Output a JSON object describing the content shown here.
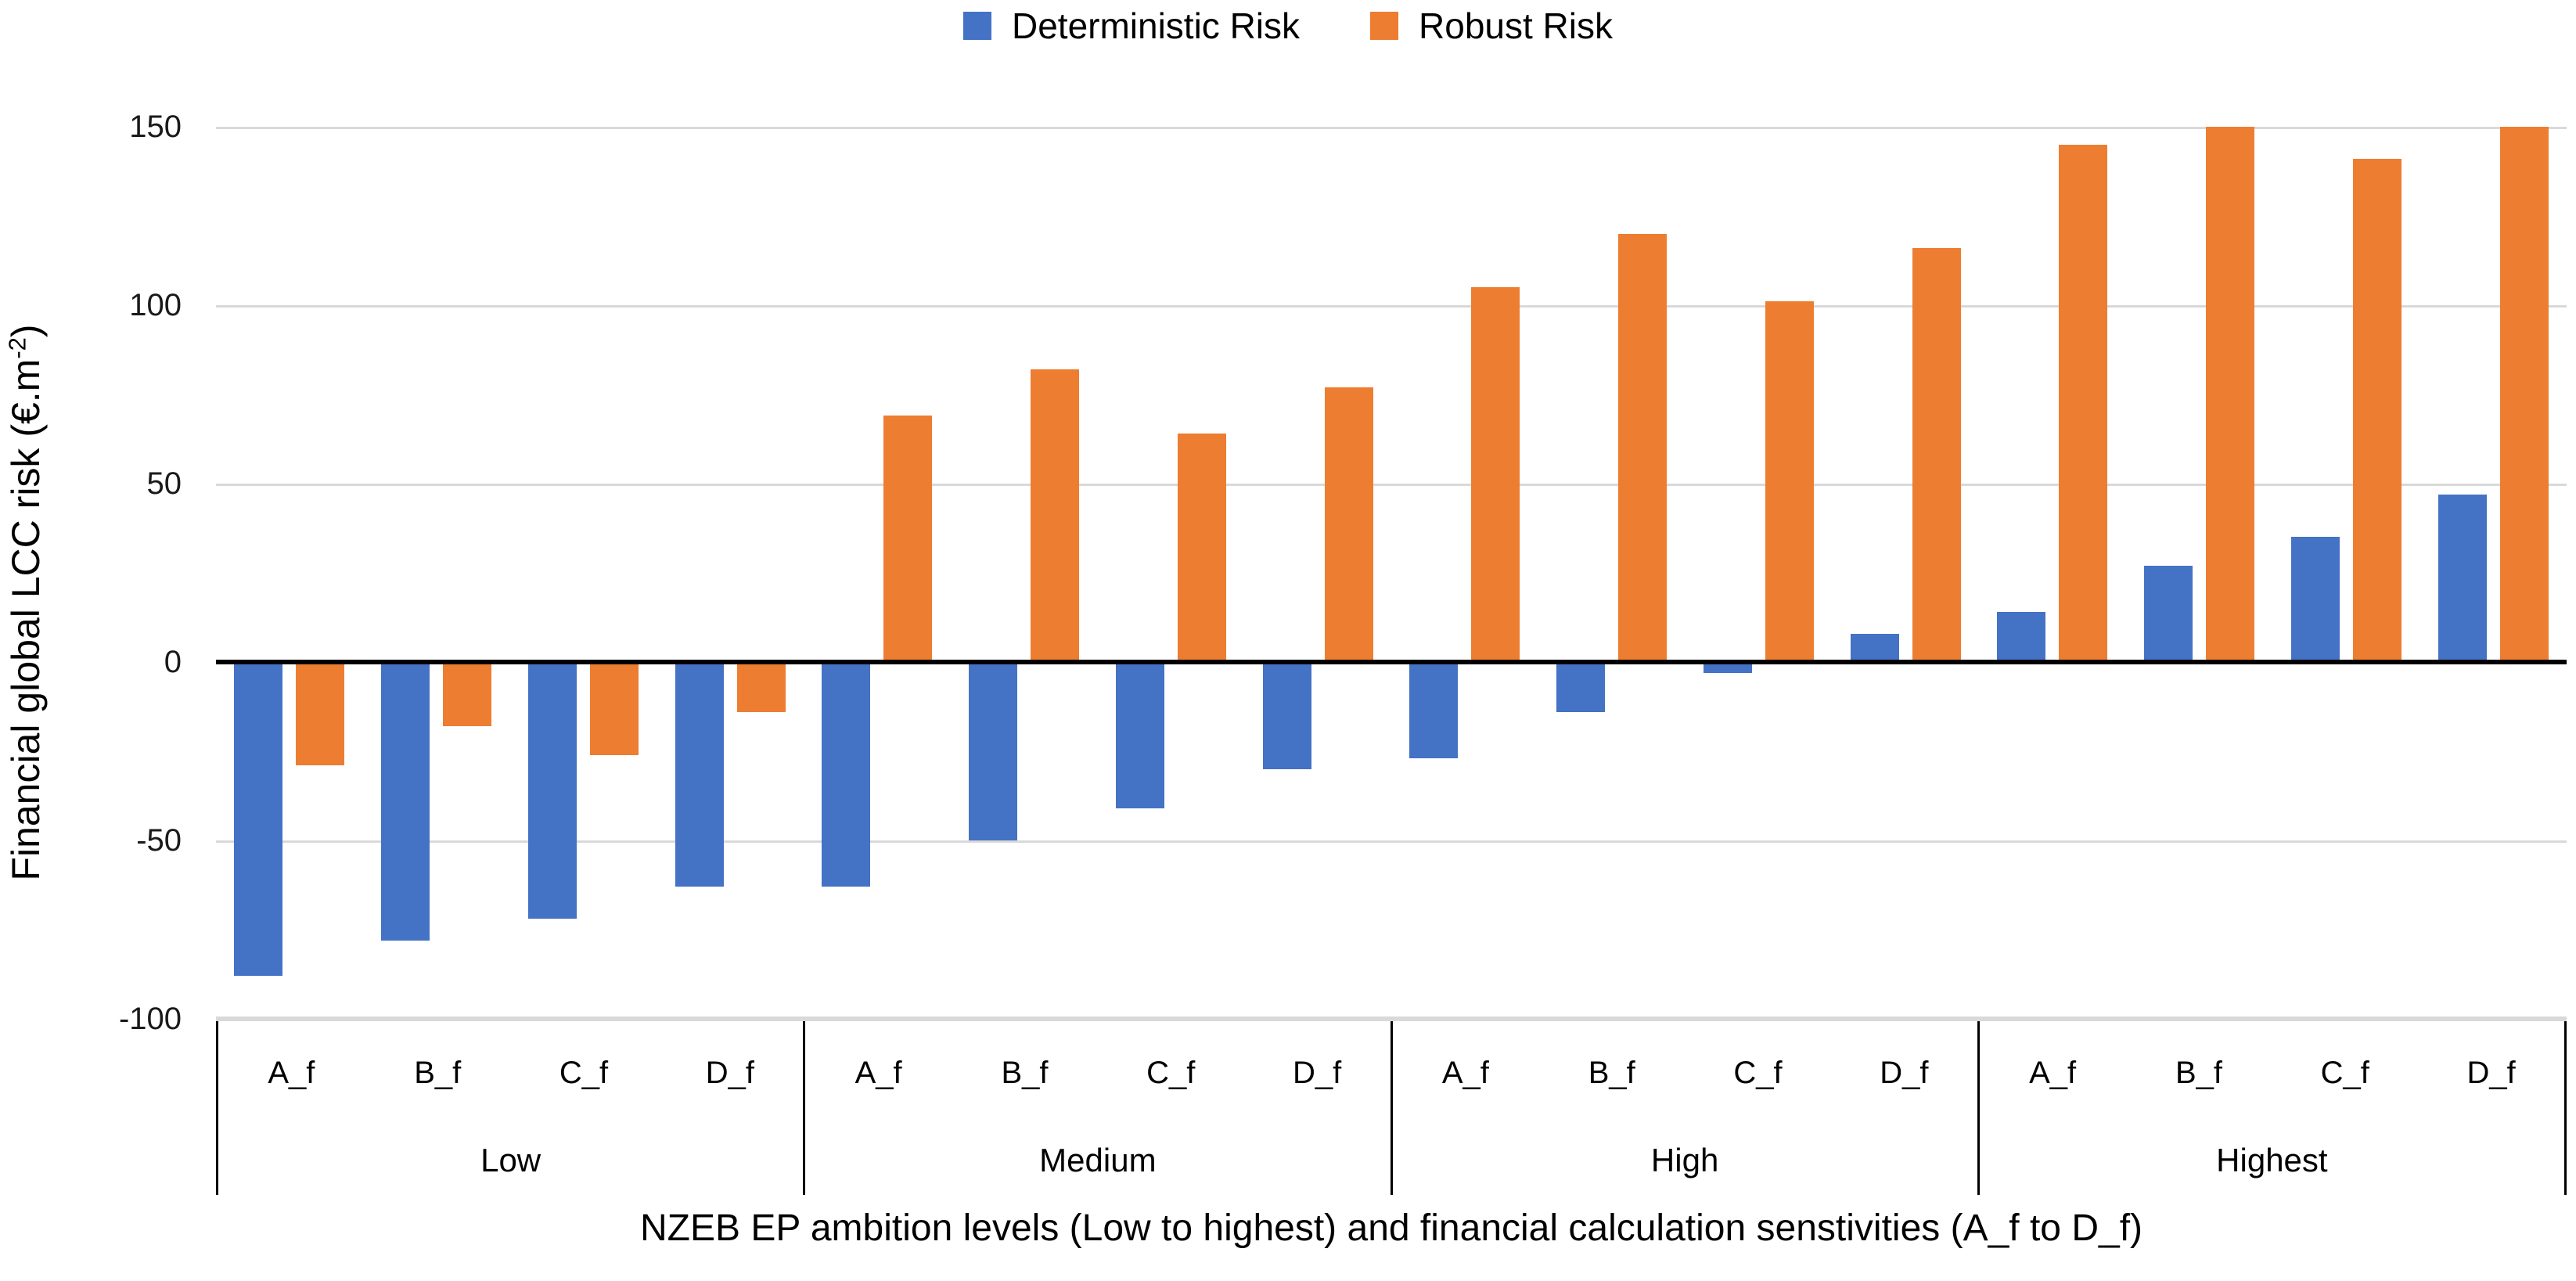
{
  "chart_data": {
    "type": "bar",
    "title": "",
    "legend_position": "top",
    "grid": true,
    "ylim": [
      -100,
      150
    ],
    "yticks": [
      150,
      100,
      50,
      0,
      -50,
      -100
    ],
    "ylabel": "Financial global LCC risk (€.m-2)",
    "xlabel": "NZEB EP ambition levels (Low to highest) and financial calculation senstivities (A_f to D_f)",
    "groups": [
      "Low",
      "Medium",
      "High",
      "Highest"
    ],
    "sensitivities": [
      "A_f",
      "B_f",
      "C_f",
      "D_f"
    ],
    "series": [
      {
        "name": "Deterministic Risk",
        "color": "#4472C4",
        "values": {
          "Low": [
            -88,
            -78,
            -72,
            -63
          ],
          "Medium": [
            -63,
            -50,
            -41,
            -30
          ],
          "High": [
            -27,
            -14,
            -3,
            8
          ],
          "Highest": [
            14,
            27,
            35,
            47
          ]
        }
      },
      {
        "name": "Robust Risk",
        "color": "#ED7D31",
        "values": {
          "Low": [
            -29,
            -18,
            -26,
            -14
          ],
          "Medium": [
            69,
            82,
            64,
            77
          ],
          "High": [
            105,
            120,
            101,
            116
          ],
          "Highest": [
            145,
            150,
            141,
            150
          ]
        }
      }
    ]
  },
  "axis": {
    "y_title_main": "Financial global LCC risk (€.m",
    "y_title_sup": "-2",
    "y_title_close": ")",
    "x_title": "NZEB EP ambition levels (Low to highest) and financial calculation senstivities (A_f to D_f)"
  },
  "colors": {
    "deterministic": "#4472C4",
    "robust": "#ED7D31",
    "gridline": "#d9d9d9",
    "axis_line": "#000000"
  }
}
